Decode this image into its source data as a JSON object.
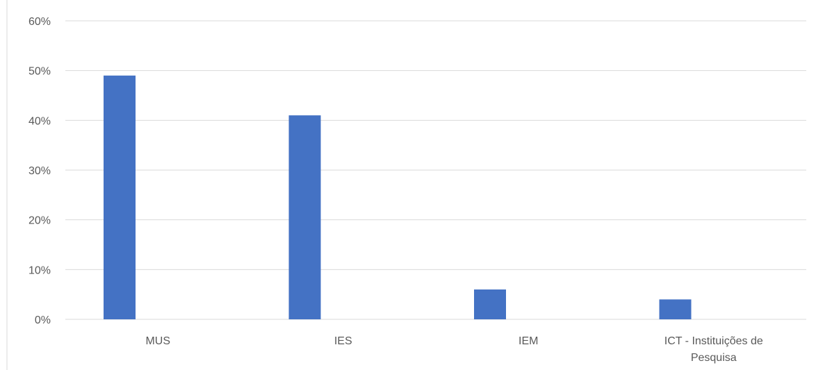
{
  "chart_data": {
    "type": "bar",
    "title": "",
    "xlabel": "",
    "ylabel": "",
    "categories": [
      [
        "MUS"
      ],
      [
        "IES"
      ],
      [
        "IEM"
      ],
      [
        "ICT - Instituições de",
        "Pesquisa"
      ]
    ],
    "values": [
      49,
      41,
      6,
      4
    ],
    "ylim": [
      0,
      60
    ],
    "yticks": [
      "0%",
      "10%",
      "20%",
      "30%",
      "40%",
      "50%",
      "60%"
    ],
    "grid": true,
    "legend": "none",
    "colors": {
      "bar": "#4472c4",
      "grid": "#d9d9d9",
      "text": "#595959"
    }
  }
}
